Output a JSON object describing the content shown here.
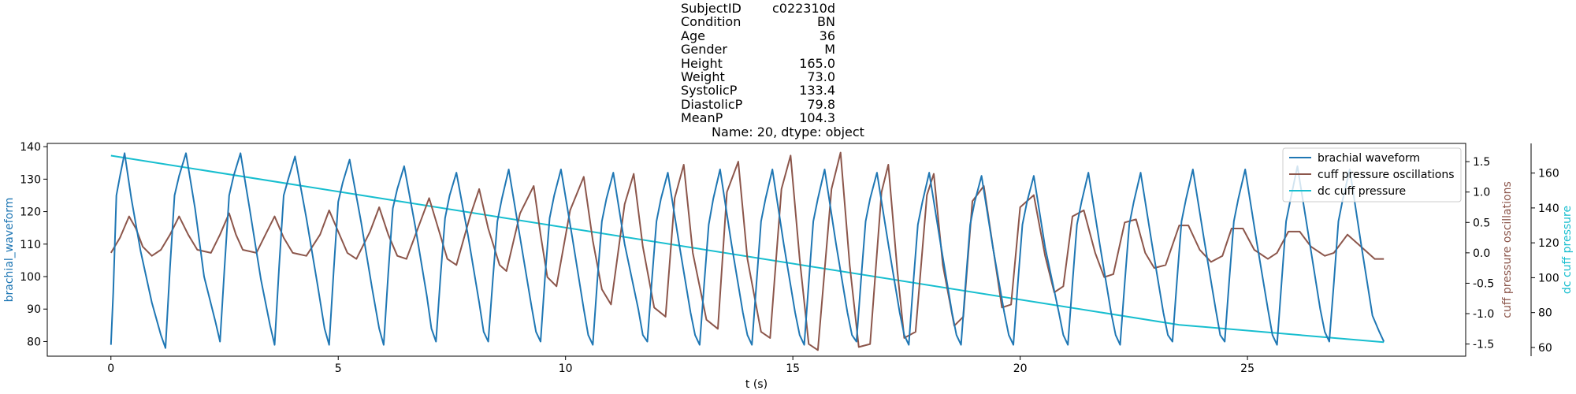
{
  "title": {
    "rows": [
      {
        "key": "SubjectID",
        "value": "c022310d"
      },
      {
        "key": "Condition",
        "value": "BN"
      },
      {
        "key": "Age",
        "value": "36"
      },
      {
        "key": "Gender",
        "value": "M"
      },
      {
        "key": "Height",
        "value": "165.0"
      },
      {
        "key": "Weight",
        "value": "73.0"
      },
      {
        "key": "SystolicP",
        "value": "133.4"
      },
      {
        "key": "DiastolicP",
        "value": "79.8"
      },
      {
        "key": "MeanP",
        "value": "104.3"
      }
    ],
    "footer": "Name: 20, dtype: object"
  },
  "chart_data": {
    "type": "line",
    "xlabel": "t (s)",
    "xlim": [
      -1.4,
      29.8
    ],
    "xticks": [
      0,
      5,
      10,
      15,
      20,
      25
    ],
    "grid": false,
    "legend_position": "top-right",
    "colors": {
      "brachial": "#1f77b4",
      "cuff": "#8c564b",
      "dc": "#17becf"
    },
    "axes": {
      "left": {
        "label": "brachial_waveform",
        "ylim": [
          75.5,
          141
        ],
        "ticks": [
          80,
          90,
          100,
          110,
          120,
          130,
          140
        ]
      },
      "right1": {
        "label": "cuff pressure oscillations",
        "ylim": [
          -1.7,
          1.8
        ],
        "ticks": [
          -1.5,
          -1.0,
          -0.5,
          0.0,
          0.5,
          1.0,
          1.5
        ]
      },
      "right2": {
        "label": "dc cuff pressure",
        "ylim": [
          55,
          177
        ],
        "ticks": [
          60,
          80,
          100,
          120,
          140,
          160
        ]
      }
    },
    "series": [
      {
        "name": "brachial waveform",
        "axis": "left",
        "color": "#1f77b4",
        "x": [
          0,
          0.05,
          0.12,
          0.2,
          0.3,
          0.45,
          0.65,
          0.9,
          1.1,
          1.2,
          1.3,
          1.4,
          1.5,
          1.65,
          1.85,
          2.05,
          2.3,
          2.4,
          2.5,
          2.6,
          2.7,
          2.85,
          3.05,
          3.3,
          3.5,
          3.6,
          3.7,
          3.8,
          3.9,
          4.05,
          4.3,
          4.55,
          4.7,
          4.8,
          4.9,
          5.0,
          5.1,
          5.25,
          5.5,
          5.75,
          5.9,
          6.0,
          6.1,
          6.2,
          6.3,
          6.45,
          6.7,
          6.95,
          7.05,
          7.15,
          7.25,
          7.35,
          7.45,
          7.6,
          7.85,
          8.1,
          8.2,
          8.3,
          8.4,
          8.5,
          8.6,
          8.75,
          9.0,
          9.25,
          9.35,
          9.45,
          9.55,
          9.65,
          9.75,
          9.9,
          10.15,
          10.4,
          10.5,
          10.6,
          10.7,
          10.8,
          10.9,
          11.05,
          11.3,
          11.6,
          11.7,
          11.8,
          11.9,
          12.0,
          12.1,
          12.25,
          12.5,
          12.75,
          12.85,
          12.95,
          13.05,
          13.15,
          13.25,
          13.4,
          13.65,
          13.9,
          14.0,
          14.1,
          14.2,
          14.3,
          14.4,
          14.55,
          14.8,
          15.05,
          15.15,
          15.25,
          15.35,
          15.45,
          15.55,
          15.7,
          15.95,
          16.2,
          16.3,
          16.4,
          16.5,
          16.6,
          16.7,
          16.85,
          17.1,
          17.35,
          17.45,
          17.55,
          17.65,
          17.75,
          17.85,
          18.0,
          18.25,
          18.5,
          18.6,
          18.7,
          18.8,
          18.9,
          19.0,
          19.15,
          19.4,
          19.65,
          19.75,
          19.85,
          19.95,
          20.05,
          20.15,
          20.3,
          20.55,
          20.85,
          20.95,
          21.05,
          21.15,
          21.25,
          21.35,
          21.5,
          21.75,
          22.0,
          22.1,
          22.2,
          22.3,
          22.4,
          22.5,
          22.65,
          22.9,
          23.15,
          23.25,
          23.35,
          23.45,
          23.55,
          23.65,
          23.8,
          24.05,
          24.3,
          24.4,
          24.5,
          24.6,
          24.7,
          24.8,
          24.95,
          25.2,
          25.45,
          25.55,
          25.65,
          25.75,
          25.85,
          25.95,
          26.1,
          26.35,
          26.6,
          26.7,
          26.8,
          26.9,
          27.0,
          27.1,
          27.25,
          27.5,
          27.75,
          27.9,
          28.0
        ],
        "values": [
          79,
          95,
          125,
          131,
          138,
          124,
          108,
          92,
          82,
          78,
          103,
          125,
          131,
          138,
          121,
          100,
          86,
          80,
          103,
          125,
          131,
          138,
          121,
          99,
          85,
          79,
          103,
          125,
          130,
          137,
          118,
          97,
          84,
          79,
          102,
          123,
          129,
          136,
          117,
          96,
          84,
          79,
          101,
          121,
          127,
          134,
          115,
          94,
          84,
          80,
          100,
          118,
          125,
          132,
          113,
          92,
          83,
          80,
          99,
          117,
          124,
          133,
          112,
          91,
          83,
          80,
          100,
          118,
          125,
          133,
          112,
          90,
          82,
          79,
          99,
          117,
          124,
          132,
          110,
          90,
          82,
          80,
          99,
          117,
          124,
          132,
          110,
          89,
          82,
          79,
          98,
          116,
          124,
          133,
          110,
          89,
          82,
          79,
          98,
          117,
          124,
          133,
          110,
          89,
          82,
          79,
          98,
          117,
          124,
          133,
          110,
          89,
          82,
          80,
          99,
          117,
          124,
          132,
          110,
          89,
          82,
          79,
          98,
          116,
          123,
          132,
          110,
          89,
          82,
          79,
          98,
          116,
          123,
          131,
          109,
          89,
          82,
          79,
          98,
          116,
          123,
          131,
          109,
          89,
          82,
          79,
          98,
          116,
          123,
          132,
          110,
          89,
          82,
          79,
          98,
          116,
          123,
          132,
          110,
          89,
          82,
          80,
          99,
          117,
          124,
          133,
          111,
          90,
          82,
          80,
          99,
          117,
          124,
          133,
          111,
          90,
          82,
          79,
          98,
          117,
          124,
          134,
          112,
          90,
          83,
          80,
          98,
          117,
          124,
          133,
          110,
          88,
          83,
          80
        ]
      },
      {
        "name": "cuff pressure oscillations",
        "axis": "right1",
        "color": "#8c564b",
        "x": [
          0,
          0.2,
          0.4,
          0.55,
          0.7,
          0.9,
          1.1,
          1.3,
          1.5,
          1.7,
          1.9,
          2.2,
          2.4,
          2.6,
          2.75,
          2.9,
          3.2,
          3.4,
          3.6,
          3.8,
          4.0,
          4.3,
          4.6,
          4.8,
          5.0,
          5.2,
          5.4,
          5.7,
          5.9,
          6.1,
          6.3,
          6.5,
          6.8,
          7.0,
          7.2,
          7.4,
          7.6,
          7.9,
          8.1,
          8.3,
          8.55,
          8.7,
          9.0,
          9.3,
          9.45,
          9.6,
          9.8,
          10.1,
          10.4,
          10.6,
          10.8,
          11.0,
          11.3,
          11.5,
          11.7,
          11.95,
          12.2,
          12.4,
          12.6,
          12.8,
          13.1,
          13.35,
          13.55,
          13.8,
          14.0,
          14.3,
          14.5,
          14.75,
          14.95,
          15.15,
          15.35,
          15.55,
          15.85,
          16.05,
          16.25,
          16.45,
          16.7,
          16.95,
          17.1,
          17.3,
          17.45,
          17.7,
          17.95,
          18.1,
          18.3,
          18.55,
          18.75,
          18.95,
          19.2,
          19.45,
          19.6,
          19.8,
          20.0,
          20.3,
          20.55,
          20.75,
          20.95,
          21.15,
          21.4,
          21.65,
          21.85,
          22.05,
          22.3,
          22.55,
          22.75,
          22.95,
          23.2,
          23.5,
          23.7,
          23.95,
          24.2,
          24.45,
          24.65,
          24.9,
          25.15,
          25.45,
          25.65,
          25.9,
          26.15,
          26.4,
          26.7,
          26.9,
          27.2,
          27.5,
          27.8,
          28.0
        ],
        "values": [
          0.0,
          0.25,
          0.6,
          0.4,
          0.1,
          -0.05,
          0.05,
          0.3,
          0.6,
          0.3,
          0.05,
          0.0,
          0.3,
          0.65,
          0.3,
          0.05,
          0.0,
          0.3,
          0.6,
          0.25,
          0.0,
          -0.05,
          0.3,
          0.7,
          0.35,
          0.0,
          -0.1,
          0.35,
          0.75,
          0.3,
          -0.05,
          -0.1,
          0.5,
          0.9,
          0.4,
          -0.1,
          -0.2,
          0.6,
          1.05,
          0.4,
          -0.2,
          -0.3,
          0.65,
          1.1,
          0.3,
          -0.4,
          -0.55,
          0.7,
          1.25,
          0.2,
          -0.6,
          -0.85,
          0.8,
          1.3,
          0.1,
          -0.9,
          -1.05,
          0.9,
          1.45,
          0.0,
          -1.1,
          -1.25,
          1.0,
          1.5,
          -0.1,
          -1.3,
          -1.4,
          1.05,
          1.6,
          -0.1,
          -1.5,
          -1.6,
          1.05,
          1.65,
          -0.2,
          -1.55,
          -1.5,
          1.0,
          1.45,
          -0.3,
          -1.4,
          -1.3,
          0.95,
          1.3,
          -0.2,
          -1.2,
          -1.05,
          0.85,
          1.1,
          -0.15,
          -0.9,
          -0.85,
          0.75,
          0.95,
          -0.05,
          -0.65,
          -0.55,
          0.6,
          0.7,
          0.0,
          -0.4,
          -0.35,
          0.5,
          0.55,
          0.0,
          -0.25,
          -0.2,
          0.45,
          0.45,
          0.05,
          -0.15,
          -0.05,
          0.4,
          0.4,
          0.05,
          -0.1,
          0.0,
          0.35,
          0.35,
          0.1,
          -0.05,
          0.0,
          0.3,
          0.1,
          -0.1,
          -0.1
        ]
      },
      {
        "name": "dc cuff pressure",
        "axis": "right2",
        "color": "#17becf",
        "x": [
          0,
          23.5,
          28
        ],
        "values": [
          170,
          73,
          63
        ]
      }
    ]
  }
}
